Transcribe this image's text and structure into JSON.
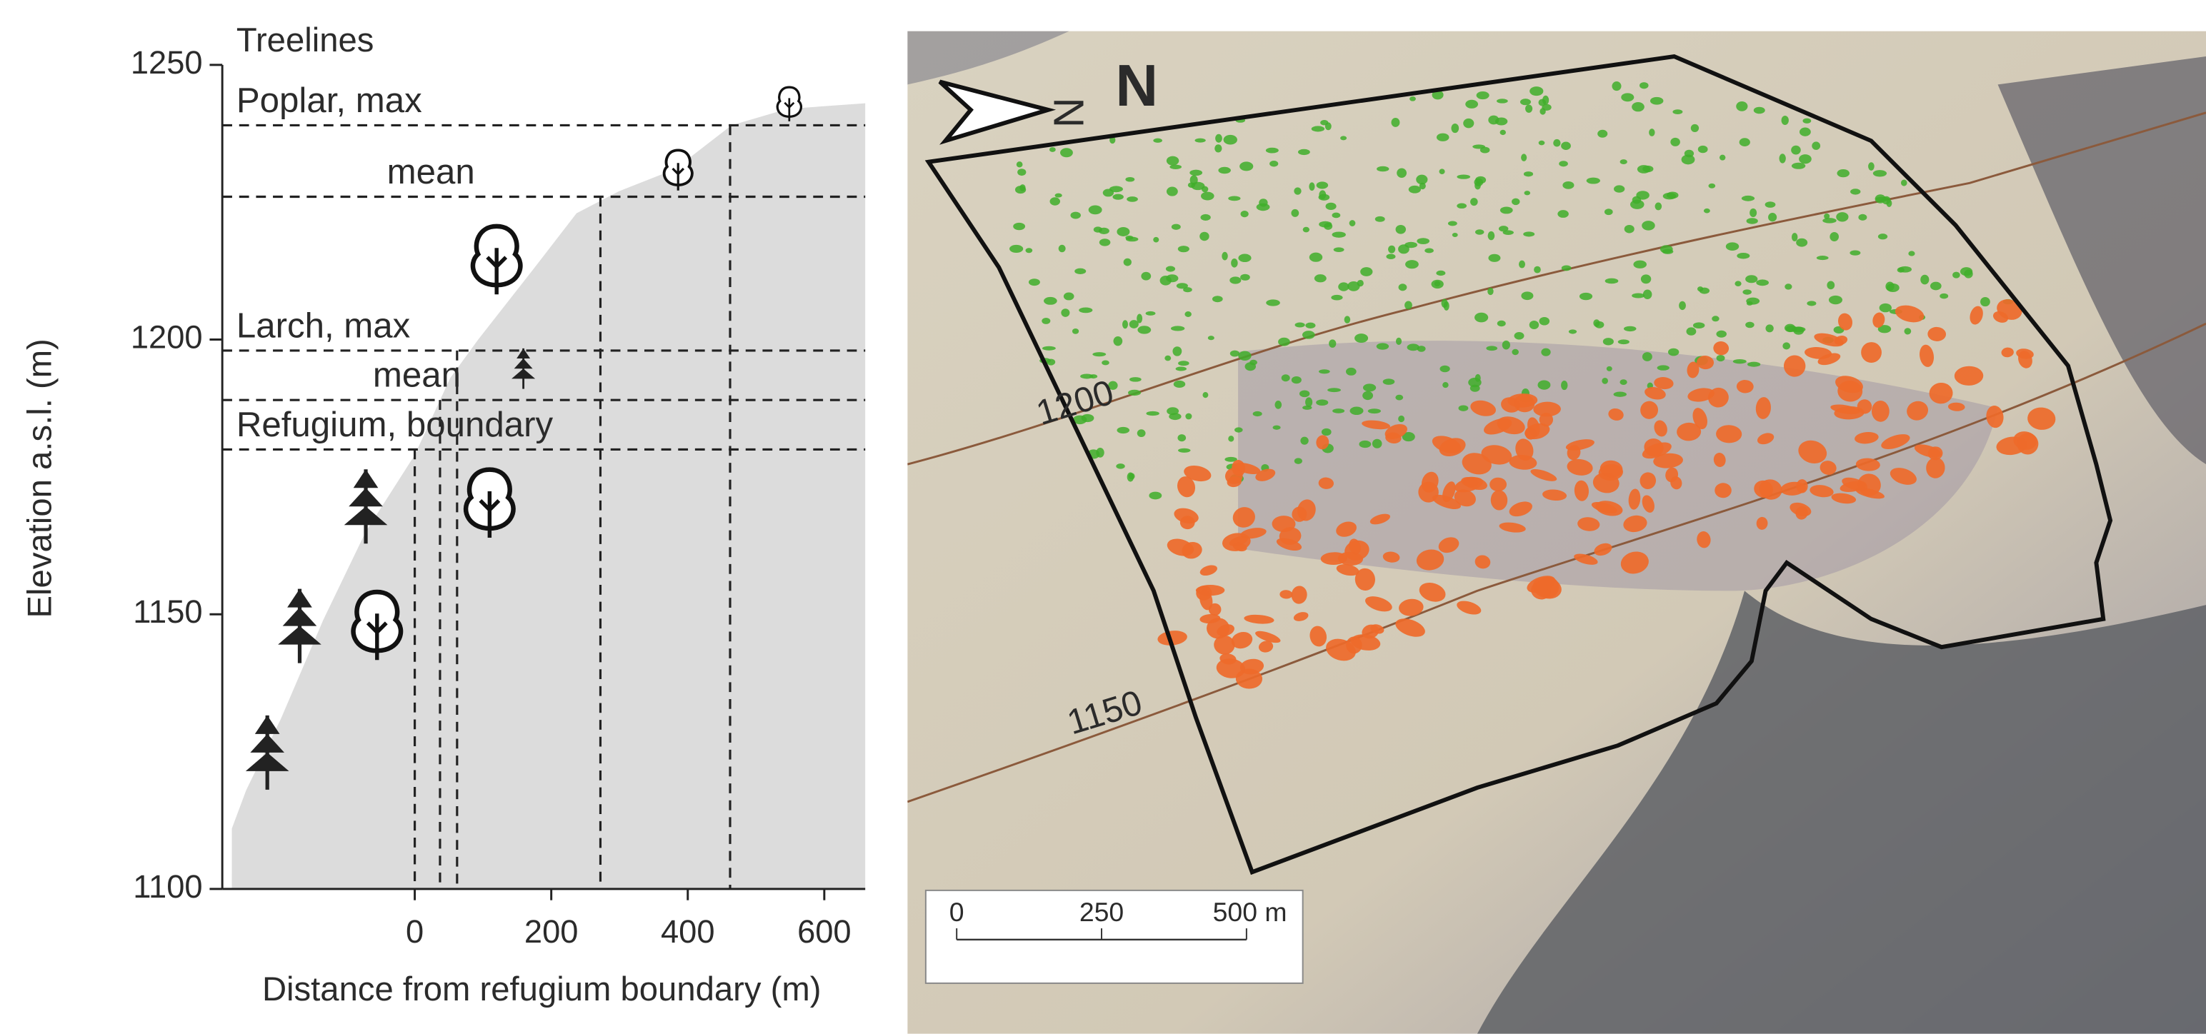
{
  "chart_data": {
    "type": "area",
    "legend_title": "Treelines",
    "x_label": "Distance from refugium boundary (m)",
    "y_label": "Elevation a.s.l. (m)",
    "x": [
      -268,
      -247,
      -196,
      -134,
      -72,
      0,
      52,
      93,
      175,
      237,
      299,
      381,
      464,
      546,
      660
    ],
    "values": [
      1111,
      1118,
      1131,
      1149,
      1165,
      1179,
      1193,
      1200,
      1213,
      1223,
      1227,
      1231,
      1239,
      1242,
      1243
    ],
    "color": "#dcdcdc",
    "xlim": [
      -282,
      660
    ],
    "ylim": [
      1100,
      1250
    ],
    "xticks": [
      0,
      200,
      400,
      600
    ],
    "yticks": [
      1100,
      1150,
      1200,
      1250
    ],
    "treelines": [
      {
        "label": "Poplar, max",
        "elevation": 1239,
        "distance": 462
      },
      {
        "label": "mean",
        "elevation": 1226,
        "distance": 272
      },
      {
        "label": "Larch, max",
        "elevation": 1198,
        "distance": 62
      },
      {
        "label": "mean",
        "elevation": 1189,
        "distance": 37
      },
      {
        "label": "Refugium, boundary",
        "elevation": 1180,
        "distance": 0
      }
    ]
  },
  "map": {
    "north_label": "N",
    "contour_labels": [
      "1200",
      "1150"
    ],
    "scale_bar": [
      "0",
      "250",
      "500 m"
    ]
  }
}
